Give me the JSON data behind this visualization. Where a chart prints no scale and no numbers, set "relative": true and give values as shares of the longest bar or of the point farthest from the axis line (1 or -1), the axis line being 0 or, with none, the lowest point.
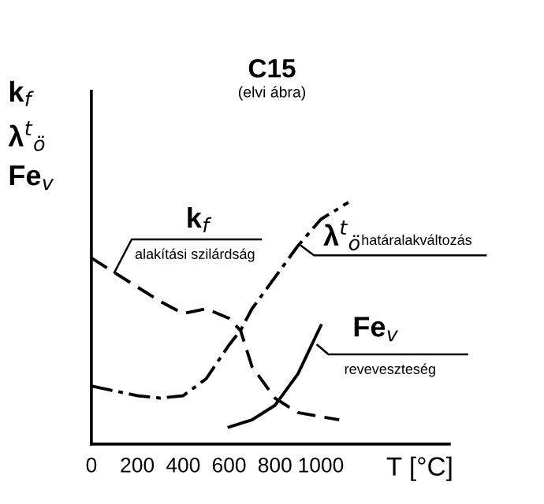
{
  "chart_data": {
    "type": "line",
    "title": "C15",
    "subtitle": "(elvi ábra)",
    "ylabel": "k$_{f}$\nλ$^{t}$$_{ö}$\nFe$_{v}$",
    "xlabel": "T [°C]",
    "relative": true,
    "x": [
      0,
      100,
      300,
      400,
      500,
      600,
      650,
      700,
      800,
      900,
      1080
    ],
    "series": [
      {
        "name": "k$_{f}$",
        "color": "#000000",
        "line_style": "dashed",
        "values": [
          0.77,
          0.71,
          0.59,
          0.54,
          0.56,
          0.52,
          0.47,
          0.32,
          0.19,
          0.13,
          0.1
        ]
      },
      {
        "name": "λ$^{t}$$_{ö}$",
        "color": "#000000",
        "line_style": "dashdot",
        "x": [
          0,
          200,
          300,
          400,
          500,
          600,
          650,
          700,
          800,
          900,
          1000,
          1120
        ],
        "values": [
          0.24,
          0.2,
          0.19,
          0.2,
          0.27,
          0.41,
          0.47,
          0.56,
          0.69,
          0.82,
          0.93,
          1.0
        ]
      },
      {
        "name": "Fe$_{v}$",
        "color": "#000000",
        "line_style": "solid",
        "x": [
          600,
          700,
          800,
          900,
          1000
        ],
        "values": [
          0.07,
          0.1,
          0.16,
          0.29,
          0.49
        ]
      }
    ],
    "annotations": [
      {
        "text": "alakítási szilárdság",
        "x": 100,
        "y": 0.71
      },
      {
        "text": "határalakváltozás",
        "x": 915,
        "y": 0.82
      },
      {
        "text": "reveveszteség",
        "x": 985,
        "y": 0.41
      }
    ],
    "xlim": [
      0,
      1560
    ],
    "xticks": [
      0,
      200,
      400,
      600,
      800,
      1000
    ],
    "grid": false,
    "legend": false
  }
}
